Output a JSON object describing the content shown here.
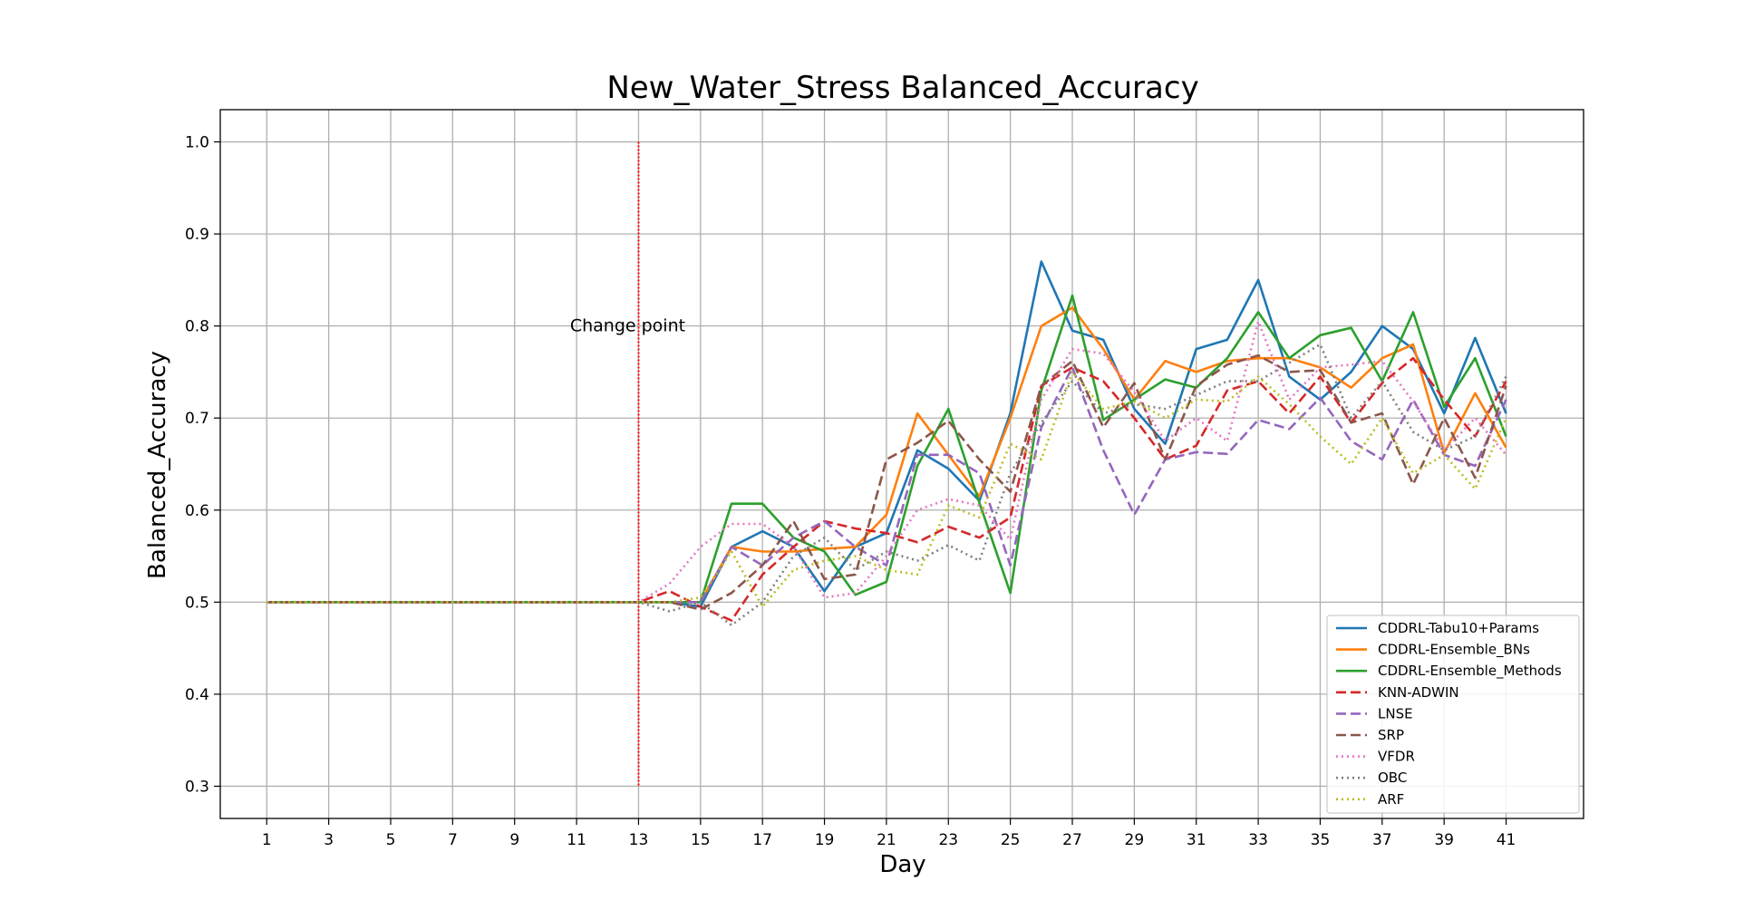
{
  "chart_data": {
    "type": "line",
    "title": "New_Water_Stress Balanced_Accuracy",
    "xlabel": "Day",
    "ylabel": "Balanced_Accuracy",
    "xlim": [
      -0.5,
      43.5
    ],
    "ylim": [
      0.265,
      1.035
    ],
    "x_ticks": [
      1,
      3,
      5,
      7,
      9,
      11,
      13,
      15,
      17,
      19,
      21,
      23,
      25,
      27,
      29,
      31,
      33,
      35,
      37,
      39,
      41
    ],
    "y_ticks": [
      0.3,
      0.4,
      0.5,
      0.6,
      0.7,
      0.8,
      0.9,
      1.0
    ],
    "y_tick_labels": [
      "0.3",
      "0.4",
      "0.5",
      "0.6",
      "0.7",
      "0.8",
      "0.9",
      "1.0"
    ],
    "grid": true,
    "legend_position": "lower-right",
    "change_point": {
      "x": 13,
      "label": "Change point",
      "y_range": [
        0.3,
        1.0
      ],
      "color": "#ff0000"
    },
    "x": [
      1,
      2,
      3,
      4,
      5,
      6,
      7,
      8,
      9,
      10,
      11,
      12,
      13,
      14,
      15,
      16,
      17,
      18,
      19,
      20,
      21,
      22,
      23,
      24,
      25,
      26,
      27,
      28,
      29,
      30,
      31,
      32,
      33,
      34,
      35,
      36,
      37,
      38,
      39,
      40,
      41
    ],
    "series": [
      {
        "name": "CDDRL-Tabu10+Params",
        "color": "#1f77b4",
        "style": "solid",
        "values": [
          0.5,
          0.5,
          0.5,
          0.5,
          0.5,
          0.5,
          0.5,
          0.5,
          0.5,
          0.5,
          0.5,
          0.5,
          0.5,
          0.5,
          0.495,
          0.56,
          0.577,
          0.56,
          0.512,
          0.56,
          0.575,
          0.665,
          0.645,
          0.61,
          0.705,
          0.87,
          0.795,
          0.785,
          0.71,
          0.672,
          0.775,
          0.785,
          0.85,
          0.745,
          0.72,
          0.75,
          0.8,
          0.775,
          0.705,
          0.787,
          0.705
        ]
      },
      {
        "name": "CDDRL-Ensemble_BNs",
        "color": "#ff7f0e",
        "style": "solid",
        "values": [
          0.5,
          0.5,
          0.5,
          0.5,
          0.5,
          0.5,
          0.5,
          0.5,
          0.5,
          0.5,
          0.5,
          0.5,
          0.5,
          0.5,
          0.5,
          0.56,
          0.555,
          0.555,
          0.558,
          0.56,
          0.595,
          0.705,
          0.66,
          0.615,
          0.7,
          0.8,
          0.82,
          0.775,
          0.72,
          0.762,
          0.75,
          0.762,
          0.765,
          0.765,
          0.755,
          0.733,
          0.765,
          0.78,
          0.662,
          0.727,
          0.668
        ]
      },
      {
        "name": "CDDRL-Ensemble_Methods",
        "color": "#2ca02c",
        "style": "solid",
        "values": [
          0.5,
          0.5,
          0.5,
          0.5,
          0.5,
          0.5,
          0.5,
          0.5,
          0.5,
          0.5,
          0.5,
          0.5,
          0.5,
          0.5,
          0.5,
          0.607,
          0.607,
          0.57,
          0.555,
          0.508,
          0.522,
          0.648,
          0.71,
          0.608,
          0.51,
          0.73,
          0.833,
          0.698,
          0.72,
          0.742,
          0.733,
          0.765,
          0.815,
          0.765,
          0.79,
          0.798,
          0.74,
          0.815,
          0.712,
          0.765,
          0.68
        ]
      },
      {
        "name": "KNN-ADWIN",
        "color": "#d62728",
        "style": "dashed",
        "values": [
          0.5,
          0.5,
          0.5,
          0.5,
          0.5,
          0.5,
          0.5,
          0.5,
          0.5,
          0.5,
          0.5,
          0.5,
          0.5,
          0.512,
          0.495,
          0.48,
          0.53,
          0.56,
          0.588,
          0.58,
          0.575,
          0.565,
          0.582,
          0.57,
          0.592,
          0.735,
          0.755,
          0.74,
          0.7,
          0.655,
          0.67,
          0.73,
          0.74,
          0.705,
          0.745,
          0.695,
          0.738,
          0.765,
          0.72,
          0.68,
          0.74
        ]
      },
      {
        "name": "LNSE",
        "color": "#9467bd",
        "style": "dashed",
        "values": [
          0.5,
          0.5,
          0.5,
          0.5,
          0.5,
          0.5,
          0.5,
          0.5,
          0.5,
          0.5,
          0.5,
          0.5,
          0.5,
          0.5,
          0.5,
          0.56,
          0.54,
          0.57,
          0.588,
          0.56,
          0.54,
          0.66,
          0.66,
          0.64,
          0.54,
          0.69,
          0.755,
          0.665,
          0.595,
          0.655,
          0.663,
          0.661,
          0.698,
          0.688,
          0.722,
          0.675,
          0.655,
          0.72,
          0.66,
          0.648,
          0.72
        ]
      },
      {
        "name": "SRP",
        "color": "#8c564b",
        "style": "dashed",
        "values": [
          0.5,
          0.5,
          0.5,
          0.5,
          0.5,
          0.5,
          0.5,
          0.5,
          0.5,
          0.5,
          0.5,
          0.5,
          0.5,
          0.5,
          0.492,
          0.51,
          0.54,
          0.588,
          0.525,
          0.53,
          0.655,
          0.673,
          0.697,
          0.655,
          0.62,
          0.735,
          0.762,
          0.69,
          0.738,
          0.655,
          0.735,
          0.758,
          0.768,
          0.75,
          0.752,
          0.695,
          0.705,
          0.628,
          0.7,
          0.635,
          0.735
        ]
      },
      {
        "name": "VFDR",
        "color": "#e377c2",
        "style": "dotted",
        "values": [
          0.5,
          0.5,
          0.5,
          0.5,
          0.5,
          0.5,
          0.5,
          0.5,
          0.5,
          0.5,
          0.5,
          0.5,
          0.5,
          0.52,
          0.56,
          0.585,
          0.585,
          0.56,
          0.505,
          0.51,
          0.55,
          0.6,
          0.612,
          0.605,
          0.568,
          0.72,
          0.775,
          0.77,
          0.728,
          0.675,
          0.7,
          0.675,
          0.805,
          0.72,
          0.755,
          0.758,
          0.762,
          0.718,
          0.665,
          0.7,
          0.66
        ]
      },
      {
        "name": "OBC",
        "color": "#7f7f7f",
        "style": "dotted",
        "values": [
          0.5,
          0.5,
          0.5,
          0.5,
          0.5,
          0.5,
          0.5,
          0.5,
          0.5,
          0.5,
          0.5,
          0.5,
          0.5,
          0.49,
          0.5,
          0.475,
          0.5,
          0.55,
          0.57,
          0.535,
          0.555,
          0.545,
          0.562,
          0.545,
          0.64,
          0.695,
          0.74,
          0.705,
          0.715,
          0.71,
          0.725,
          0.74,
          0.74,
          0.76,
          0.78,
          0.7,
          0.74,
          0.685,
          0.665,
          0.68,
          0.745
        ]
      },
      {
        "name": "ARF",
        "color": "#bcbd22",
        "style": "dotted",
        "values": [
          0.5,
          0.5,
          0.5,
          0.5,
          0.5,
          0.5,
          0.5,
          0.5,
          0.5,
          0.5,
          0.5,
          0.5,
          0.5,
          0.5,
          0.505,
          0.555,
          0.495,
          0.535,
          0.545,
          0.55,
          0.535,
          0.53,
          0.605,
          0.592,
          0.672,
          0.655,
          0.75,
          0.71,
          0.718,
          0.7,
          0.72,
          0.718,
          0.745,
          0.715,
          0.68,
          0.65,
          0.7,
          0.64,
          0.66,
          0.623,
          0.7
        ]
      }
    ]
  }
}
